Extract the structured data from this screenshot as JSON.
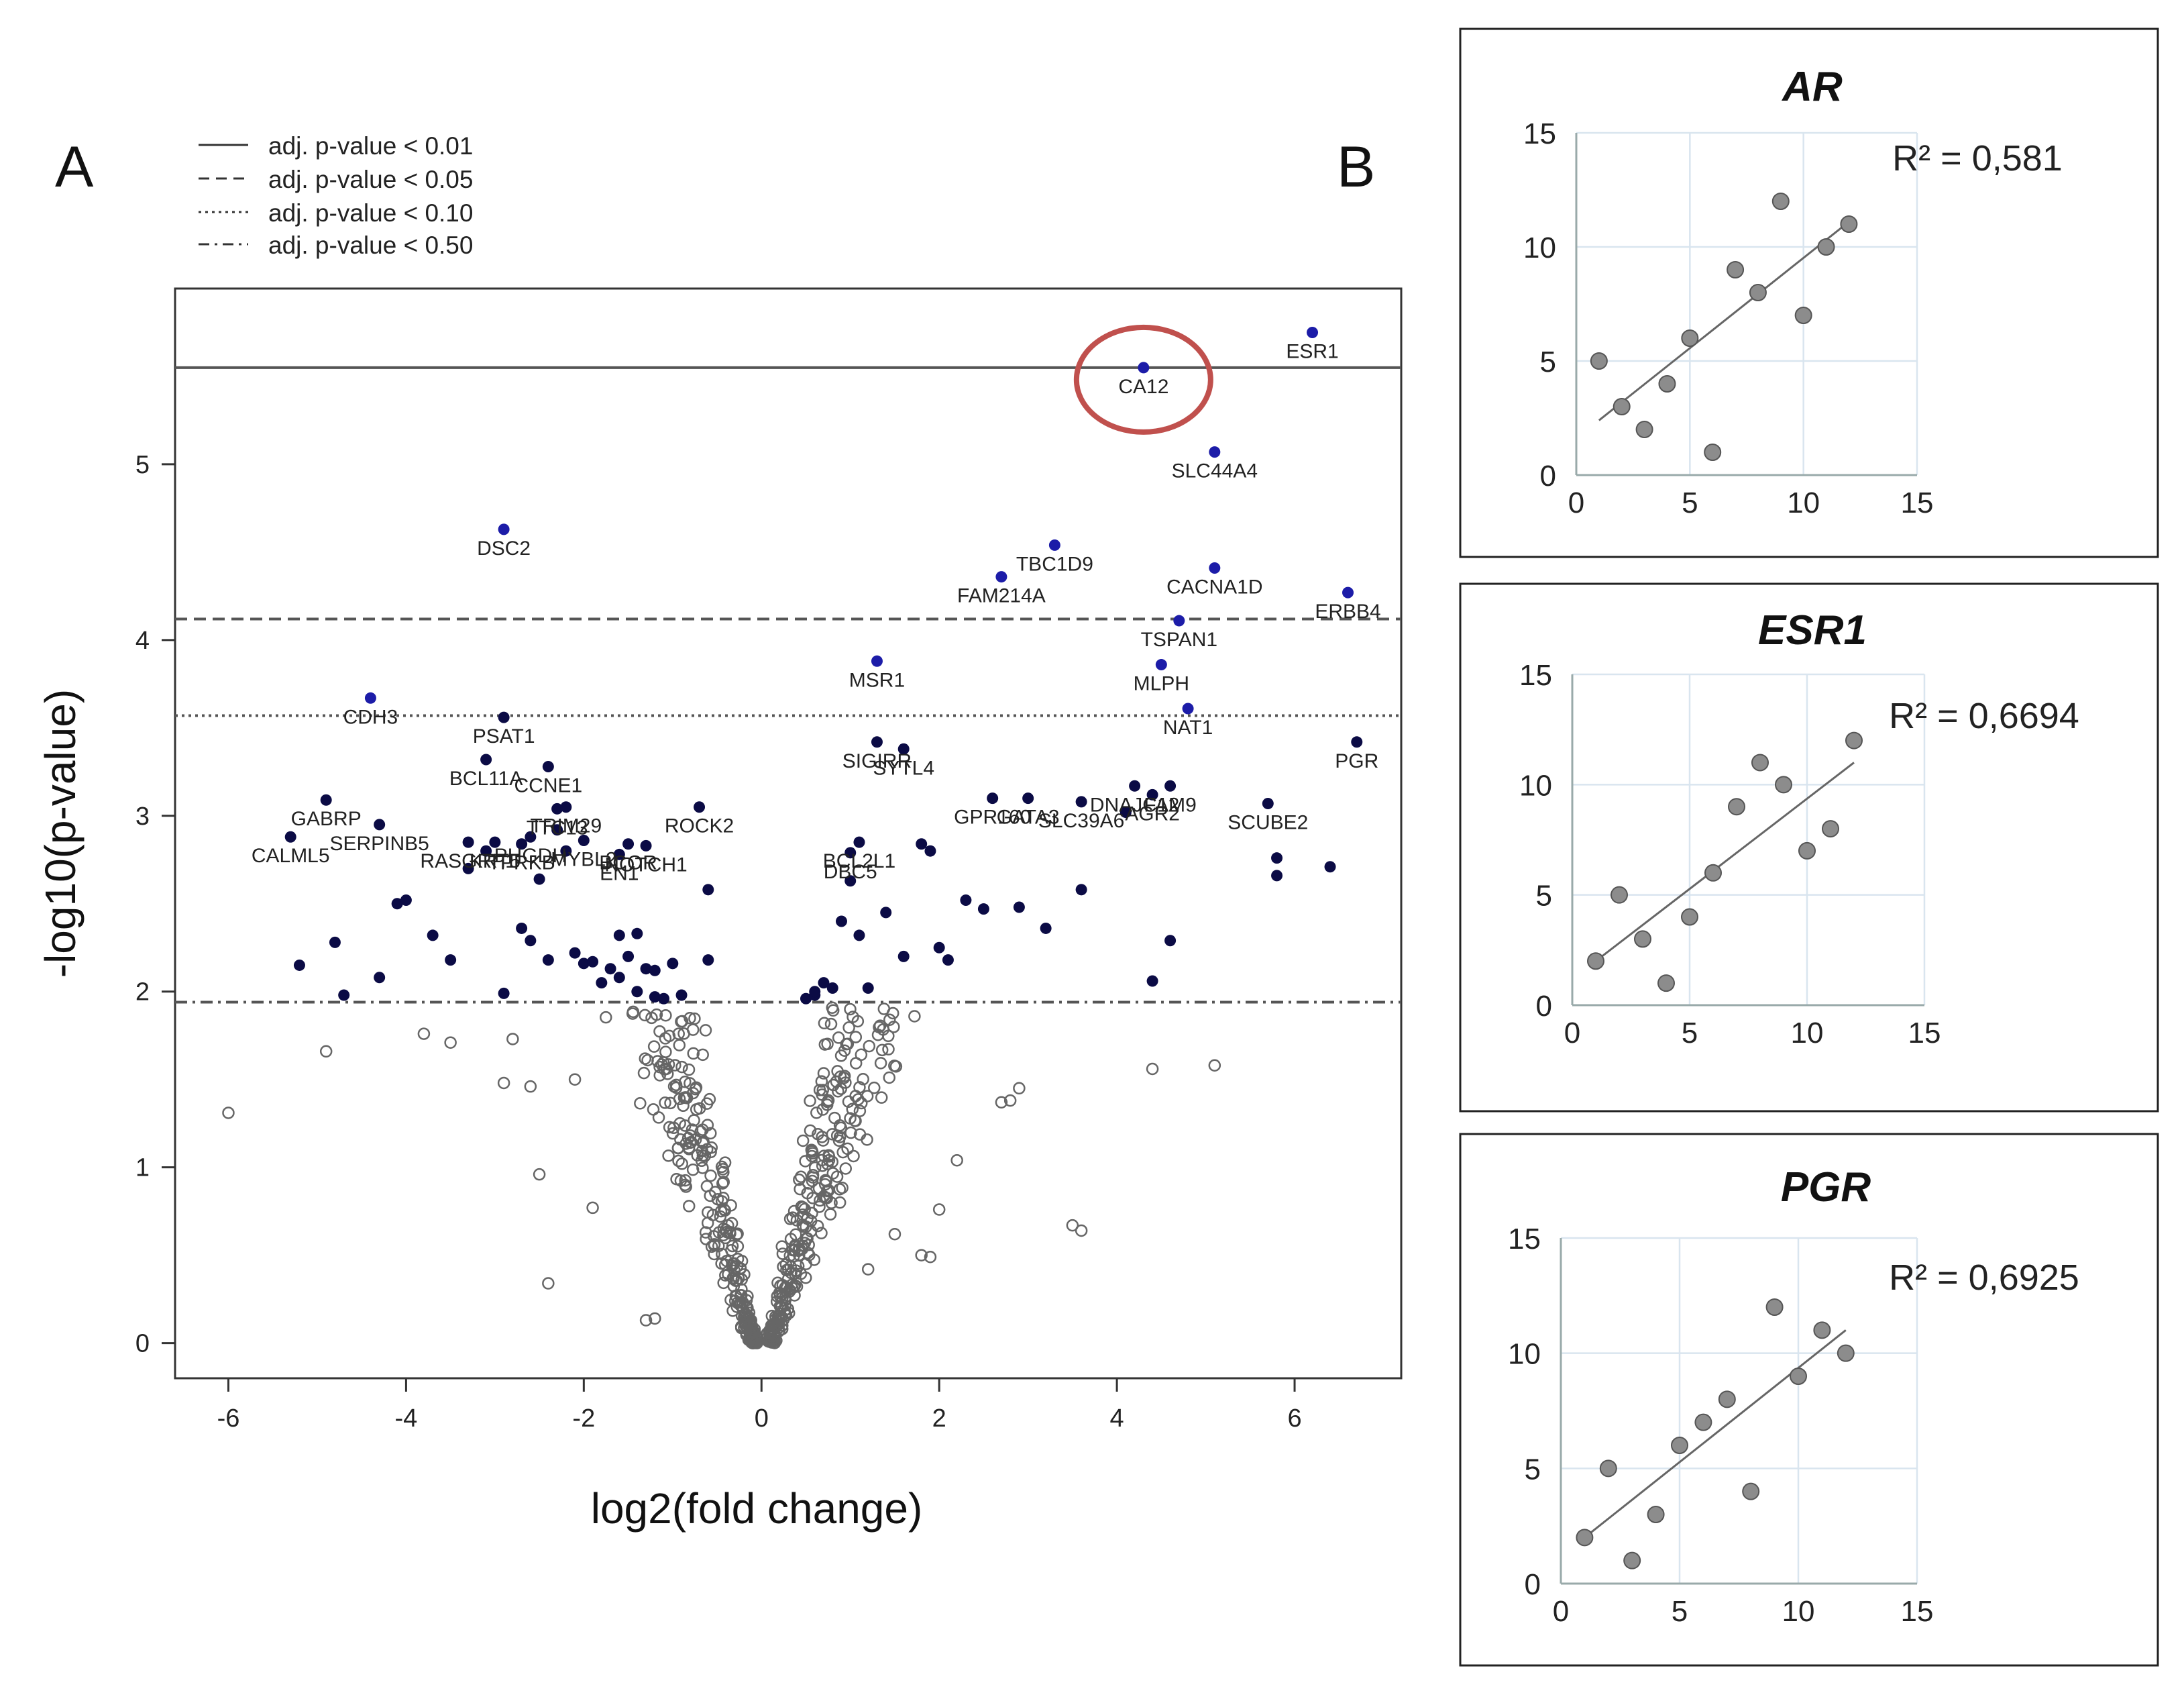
{
  "panel_a": {
    "label": "A",
    "legend": [
      {
        "label": "adj. p-value < 0.01",
        "style": "solid"
      },
      {
        "label": "adj. p-value < 0.05",
        "style": "dashed"
      },
      {
        "label": "adj. p-value < 0.10",
        "style": "dotted"
      },
      {
        "label": "adj. p-value < 0.50",
        "style": "dashdot"
      }
    ]
  },
  "panel_b": {
    "label": "B"
  },
  "colors": {
    "sig": "#0b0b45",
    "highlight": "#1c1ca8",
    "ns_stroke": "#666666",
    "circle": "#c0504d",
    "scatter": "#8c8c8c",
    "grid": "#d9e5ef"
  },
  "chart_data": [
    {
      "type": "scatter",
      "kind": "volcano",
      "xlabel": "log2(fold change)",
      "ylabel": "-log10(p-value)",
      "xlim": [
        -6.6,
        7.2
      ],
      "ylim": [
        -0.2,
        6.0
      ],
      "xticks": [
        -6,
        -4,
        -2,
        0,
        2,
        4,
        6
      ],
      "yticks": [
        0,
        1,
        2,
        3,
        4,
        5
      ],
      "thresholds": [
        {
          "y": 5.55,
          "style": "solid"
        },
        {
          "y": 4.12,
          "style": "dashed"
        },
        {
          "y": 3.57,
          "style": "dotted"
        },
        {
          "y": 1.94,
          "style": "dashdot"
        }
      ],
      "highlight_circle": "CA12",
      "labeled_genes": [
        {
          "name": "ESR1",
          "x": 6.2,
          "y": 5.75,
          "hl": true
        },
        {
          "name": "CA12",
          "x": 4.3,
          "y": 5.55,
          "hl": true
        },
        {
          "name": "SLC44A4",
          "x": 5.1,
          "y": 5.07,
          "hl": true
        },
        {
          "name": "DSC2",
          "x": -2.9,
          "y": 4.63,
          "hl": true
        },
        {
          "name": "TBC1D9",
          "x": 3.3,
          "y": 4.54,
          "hl": true
        },
        {
          "name": "CACNA1D",
          "x": 5.1,
          "y": 4.41,
          "hl": true
        },
        {
          "name": "FAM214A",
          "x": 2.7,
          "y": 4.36,
          "hl": true
        },
        {
          "name": "ERBB4",
          "x": 6.6,
          "y": 4.27,
          "hl": true
        },
        {
          "name": "TSPAN1",
          "x": 4.7,
          "y": 4.11,
          "hl": true
        },
        {
          "name": "MSR1",
          "x": 1.3,
          "y": 3.88,
          "hl": true
        },
        {
          "name": "MLPH",
          "x": 4.5,
          "y": 3.86,
          "hl": true
        },
        {
          "name": "CDH3",
          "x": -4.4,
          "y": 3.67,
          "hl": true
        },
        {
          "name": "NAT1",
          "x": 4.8,
          "y": 3.61,
          "hl": true
        },
        {
          "name": "PSAT1",
          "x": -2.9,
          "y": 3.56
        },
        {
          "name": "PGR",
          "x": 6.7,
          "y": 3.42
        },
        {
          "name": "SIGIRR",
          "x": 1.3,
          "y": 3.42
        },
        {
          "name": "SYTL4",
          "x": 1.6,
          "y": 3.38
        },
        {
          "name": "BCL11A",
          "x": -3.1,
          "y": 3.32
        },
        {
          "name": "CCNE1",
          "x": -2.4,
          "y": 3.28
        },
        {
          "name": "GABRP",
          "x": -4.9,
          "y": 3.09
        },
        {
          "name": "GPR160",
          "x": 2.6,
          "y": 3.1
        },
        {
          "name": "GATA3",
          "x": 3.0,
          "y": 3.1
        },
        {
          "name": "SLC39A6",
          "x": 3.6,
          "y": 3.08
        },
        {
          "name": "DNAJC12",
          "x": 4.2,
          "y": 3.17
        },
        {
          "name": "AGR2",
          "x": 4.4,
          "y": 3.12
        },
        {
          "name": "FAM9",
          "x": 4.6,
          "y": 3.17
        },
        {
          "name": "SCUBE2",
          "x": 5.7,
          "y": 3.07
        },
        {
          "name": "TTC13",
          "x": -2.3,
          "y": 3.04
        },
        {
          "name": "TRIM29",
          "x": -2.2,
          "y": 3.05
        },
        {
          "name": "ROCK2",
          "x": -0.7,
          "y": 3.05
        },
        {
          "name": "SERPINB5",
          "x": -4.3,
          "y": 2.95
        },
        {
          "name": "PHGDH",
          "x": -2.6,
          "y": 2.88
        },
        {
          "name": "CALML5",
          "x": -5.3,
          "y": 2.88
        },
        {
          "name": "RASGRP1",
          "x": -3.3,
          "y": 2.85
        },
        {
          "name": "KRT5",
          "x": -3.0,
          "y": 2.85
        },
        {
          "name": "TPRKB",
          "x": -2.7,
          "y": 2.84
        },
        {
          "name": "MYBL2",
          "x": -2.0,
          "y": 2.86
        },
        {
          "name": "BCOR",
          "x": -1.5,
          "y": 2.84
        },
        {
          "name": "BCL2L1",
          "x": 1.1,
          "y": 2.85
        },
        {
          "name": "NOTCH1",
          "x": -1.3,
          "y": 2.83
        },
        {
          "name": "EN1",
          "x": -1.6,
          "y": 2.78
        },
        {
          "name": "DBC5",
          "x": 1.0,
          "y": 2.79
        }
      ],
      "extra_sig_points": [
        [
          -5.2,
          2.15
        ],
        [
          -4.8,
          2.28
        ],
        [
          -4.7,
          1.98
        ],
        [
          -4.3,
          2.08
        ],
        [
          -4.1,
          2.5
        ],
        [
          -4.0,
          2.52
        ],
        [
          -3.7,
          2.32
        ],
        [
          -3.5,
          2.18
        ],
        [
          -3.3,
          2.7
        ],
        [
          -3.1,
          2.8
        ],
        [
          -2.9,
          1.99
        ],
        [
          -2.7,
          2.36
        ],
        [
          -2.6,
          2.29
        ],
        [
          -2.5,
          2.64
        ],
        [
          -2.4,
          2.18
        ],
        [
          -2.3,
          2.92
        ],
        [
          -2.2,
          2.8
        ],
        [
          -2.1,
          2.22
        ],
        [
          -2.0,
          2.16
        ],
        [
          -1.9,
          2.17
        ],
        [
          -1.8,
          2.05
        ],
        [
          -1.7,
          2.13
        ],
        [
          -1.6,
          2.08
        ],
        [
          -1.6,
          2.32
        ],
        [
          -1.5,
          2.2
        ],
        [
          -1.4,
          2.33
        ],
        [
          -1.4,
          2.0
        ],
        [
          -1.3,
          2.13
        ],
        [
          -1.2,
          2.12
        ],
        [
          -1.2,
          1.97
        ],
        [
          -1.1,
          1.96
        ],
        [
          -1.0,
          2.16
        ],
        [
          -0.9,
          1.98
        ],
        [
          -0.6,
          2.18
        ],
        [
          -0.6,
          2.58
        ],
        [
          0.5,
          1.96
        ],
        [
          0.6,
          1.98
        ],
        [
          0.6,
          2.0
        ],
        [
          0.7,
          2.05
        ],
        [
          0.8,
          2.02
        ],
        [
          0.9,
          2.4
        ],
        [
          1.0,
          2.63
        ],
        [
          1.1,
          2.32
        ],
        [
          1.2,
          2.02
        ],
        [
          1.4,
          2.45
        ],
        [
          1.6,
          2.2
        ],
        [
          1.8,
          2.84
        ],
        [
          1.9,
          2.8
        ],
        [
          2.0,
          2.25
        ],
        [
          2.1,
          2.18
        ],
        [
          2.3,
          2.52
        ],
        [
          2.5,
          2.47
        ],
        [
          2.9,
          2.48
        ],
        [
          3.2,
          2.36
        ],
        [
          3.6,
          2.58
        ],
        [
          4.4,
          2.06
        ],
        [
          4.6,
          2.29
        ],
        [
          5.8,
          2.76
        ],
        [
          5.8,
          2.66
        ],
        [
          6.4,
          2.71
        ],
        [
          4.1,
          3.02
        ]
      ],
      "ns_scatter": {
        "n": 520,
        "fold_threshold_y": 1.94
      },
      "ns_outliers": [
        [
          -6.0,
          1.31
        ],
        [
          -4.9,
          1.66
        ],
        [
          -3.8,
          1.76
        ],
        [
          -3.5,
          1.71
        ],
        [
          -2.9,
          1.48
        ],
        [
          -2.8,
          1.73
        ],
        [
          -2.6,
          1.46
        ],
        [
          -2.5,
          0.96
        ],
        [
          -2.4,
          0.34
        ],
        [
          -2.1,
          1.5
        ],
        [
          -1.9,
          0.77
        ],
        [
          -1.3,
          0.13
        ],
        [
          -1.2,
          0.14
        ],
        [
          3.5,
          0.67
        ],
        [
          3.6,
          0.64
        ],
        [
          4.4,
          1.56
        ],
        [
          5.1,
          1.58
        ],
        [
          2.9,
          1.45
        ],
        [
          2.8,
          1.38
        ],
        [
          2.7,
          1.37
        ],
        [
          2.2,
          1.04
        ],
        [
          2.0,
          0.76
        ],
        [
          1.8,
          0.5
        ],
        [
          1.9,
          0.49
        ],
        [
          1.2,
          0.42
        ],
        [
          1.5,
          0.62
        ]
      ]
    },
    {
      "type": "scatter",
      "title": "AR",
      "r2_label": "R² = 0,581",
      "xlim": [
        0,
        15
      ],
      "ylim": [
        0,
        15
      ],
      "xticks": [
        0,
        5,
        10,
        15
      ],
      "yticks": [
        0,
        5,
        10,
        15
      ],
      "points": [
        [
          1,
          5
        ],
        [
          2,
          3
        ],
        [
          3,
          2
        ],
        [
          4,
          4
        ],
        [
          5,
          6
        ],
        [
          6,
          1
        ],
        [
          7,
          9
        ],
        [
          8,
          8
        ],
        [
          9,
          12
        ],
        [
          10,
          7
        ],
        [
          11,
          10
        ],
        [
          12,
          11
        ]
      ],
      "trendline": [
        [
          1,
          2.4
        ],
        [
          12,
          11.1
        ]
      ]
    },
    {
      "type": "scatter",
      "title": "ESR1",
      "r2_label": "R² = 0,6694",
      "xlim": [
        0,
        15
      ],
      "ylim": [
        0,
        15
      ],
      "xticks": [
        0,
        5,
        10,
        15
      ],
      "yticks": [
        0,
        5,
        10,
        15
      ],
      "points": [
        [
          1,
          2
        ],
        [
          2,
          5
        ],
        [
          3,
          3
        ],
        [
          4,
          1
        ],
        [
          5,
          4
        ],
        [
          6,
          6
        ],
        [
          7,
          9
        ],
        [
          8,
          11
        ],
        [
          9,
          10
        ],
        [
          10,
          7
        ],
        [
          11,
          8
        ],
        [
          12,
          12
        ]
      ],
      "trendline": [
        [
          1,
          2.0
        ],
        [
          12,
          11.0
        ]
      ]
    },
    {
      "type": "scatter",
      "title": "PGR",
      "r2_label": "R² = 0,6925",
      "xlim": [
        0,
        15
      ],
      "ylim": [
        0,
        15
      ],
      "xticks": [
        0,
        5,
        10,
        15
      ],
      "yticks": [
        0,
        5,
        10,
        15
      ],
      "points": [
        [
          1,
          2
        ],
        [
          2,
          5
        ],
        [
          3,
          1
        ],
        [
          4,
          3
        ],
        [
          5,
          6
        ],
        [
          6,
          7
        ],
        [
          7,
          8
        ],
        [
          8,
          4
        ],
        [
          9,
          12
        ],
        [
          10,
          9
        ],
        [
          11,
          11
        ],
        [
          12,
          10
        ]
      ],
      "trendline": [
        [
          1,
          2.0
        ],
        [
          12,
          11.0
        ]
      ]
    }
  ]
}
